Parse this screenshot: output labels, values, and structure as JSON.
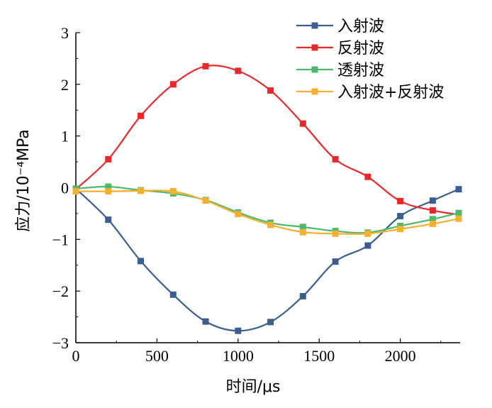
{
  "chart_data": {
    "type": "line",
    "title": "",
    "xlabel": "时间/μs",
    "ylabel": "应力/10⁻⁴MPa",
    "xlim": [
      0,
      2360
    ],
    "ylim": [
      -3,
      3
    ],
    "xticks": [
      0,
      500,
      1000,
      1500,
      2000
    ],
    "yticks": [
      3,
      2,
      1,
      0,
      -1,
      -2,
      -3
    ],
    "xtick_labels": [
      "0",
      "500",
      "1000",
      "1500",
      "2000"
    ],
    "ytick_labels": [
      "3",
      "2",
      "1",
      "0",
      "−1",
      "−2",
      "−3"
    ],
    "grid": false,
    "legend_position": "top-right",
    "x": [
      0,
      200,
      400,
      600,
      800,
      1000,
      1200,
      1400,
      1600,
      1800,
      2000,
      2200,
      2360
    ],
    "series": [
      {
        "name": "入射波",
        "color": "#3a5f8f",
        "marker": "square",
        "values": [
          -0.02,
          -0.62,
          -1.42,
          -2.07,
          -2.59,
          -2.77,
          -2.6,
          -2.1,
          -1.43,
          -1.12,
          -0.55,
          -0.25,
          -0.03
        ]
      },
      {
        "name": "反射波",
        "color": "#e8292a",
        "marker": "square",
        "values": [
          -0.03,
          0.55,
          1.39,
          2.0,
          2.35,
          2.26,
          1.88,
          1.24,
          0.55,
          0.21,
          -0.26,
          -0.44,
          -0.52
        ]
      },
      {
        "name": "透射波",
        "color": "#4cb86a",
        "marker": "square",
        "values": [
          -0.02,
          0.02,
          -0.05,
          -0.11,
          -0.24,
          -0.48,
          -0.68,
          -0.76,
          -0.84,
          -0.87,
          -0.74,
          -0.61,
          -0.49
        ]
      },
      {
        "name": "入射波+反射波",
        "color": "#f5b030",
        "marker": "square",
        "values": [
          -0.07,
          -0.07,
          -0.06,
          -0.07,
          -0.25,
          -0.51,
          -0.72,
          -0.86,
          -0.89,
          -0.89,
          -0.8,
          -0.7,
          -0.6
        ]
      }
    ]
  }
}
